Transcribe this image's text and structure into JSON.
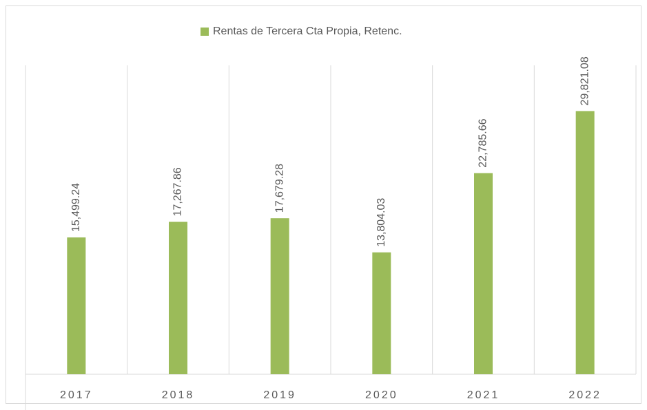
{
  "chart_data": {
    "type": "bar",
    "categories": [
      "2017",
      "2018",
      "2019",
      "2020",
      "2021",
      "2022"
    ],
    "series": [
      {
        "name": "Rentas de Tercera Cta Propia, Retenc.",
        "color": "#9bbb59",
        "values": [
          15499.24,
          17267.86,
          17679.28,
          13804.03,
          22785.66,
          29821.08
        ],
        "value_labels": [
          "15,499.24",
          "17,267.86",
          "17,679.28",
          "13,804.03",
          "22,785.66",
          "29,821.08"
        ]
      }
    ],
    "ylim": [
      0,
      35000
    ],
    "legend": "top"
  }
}
